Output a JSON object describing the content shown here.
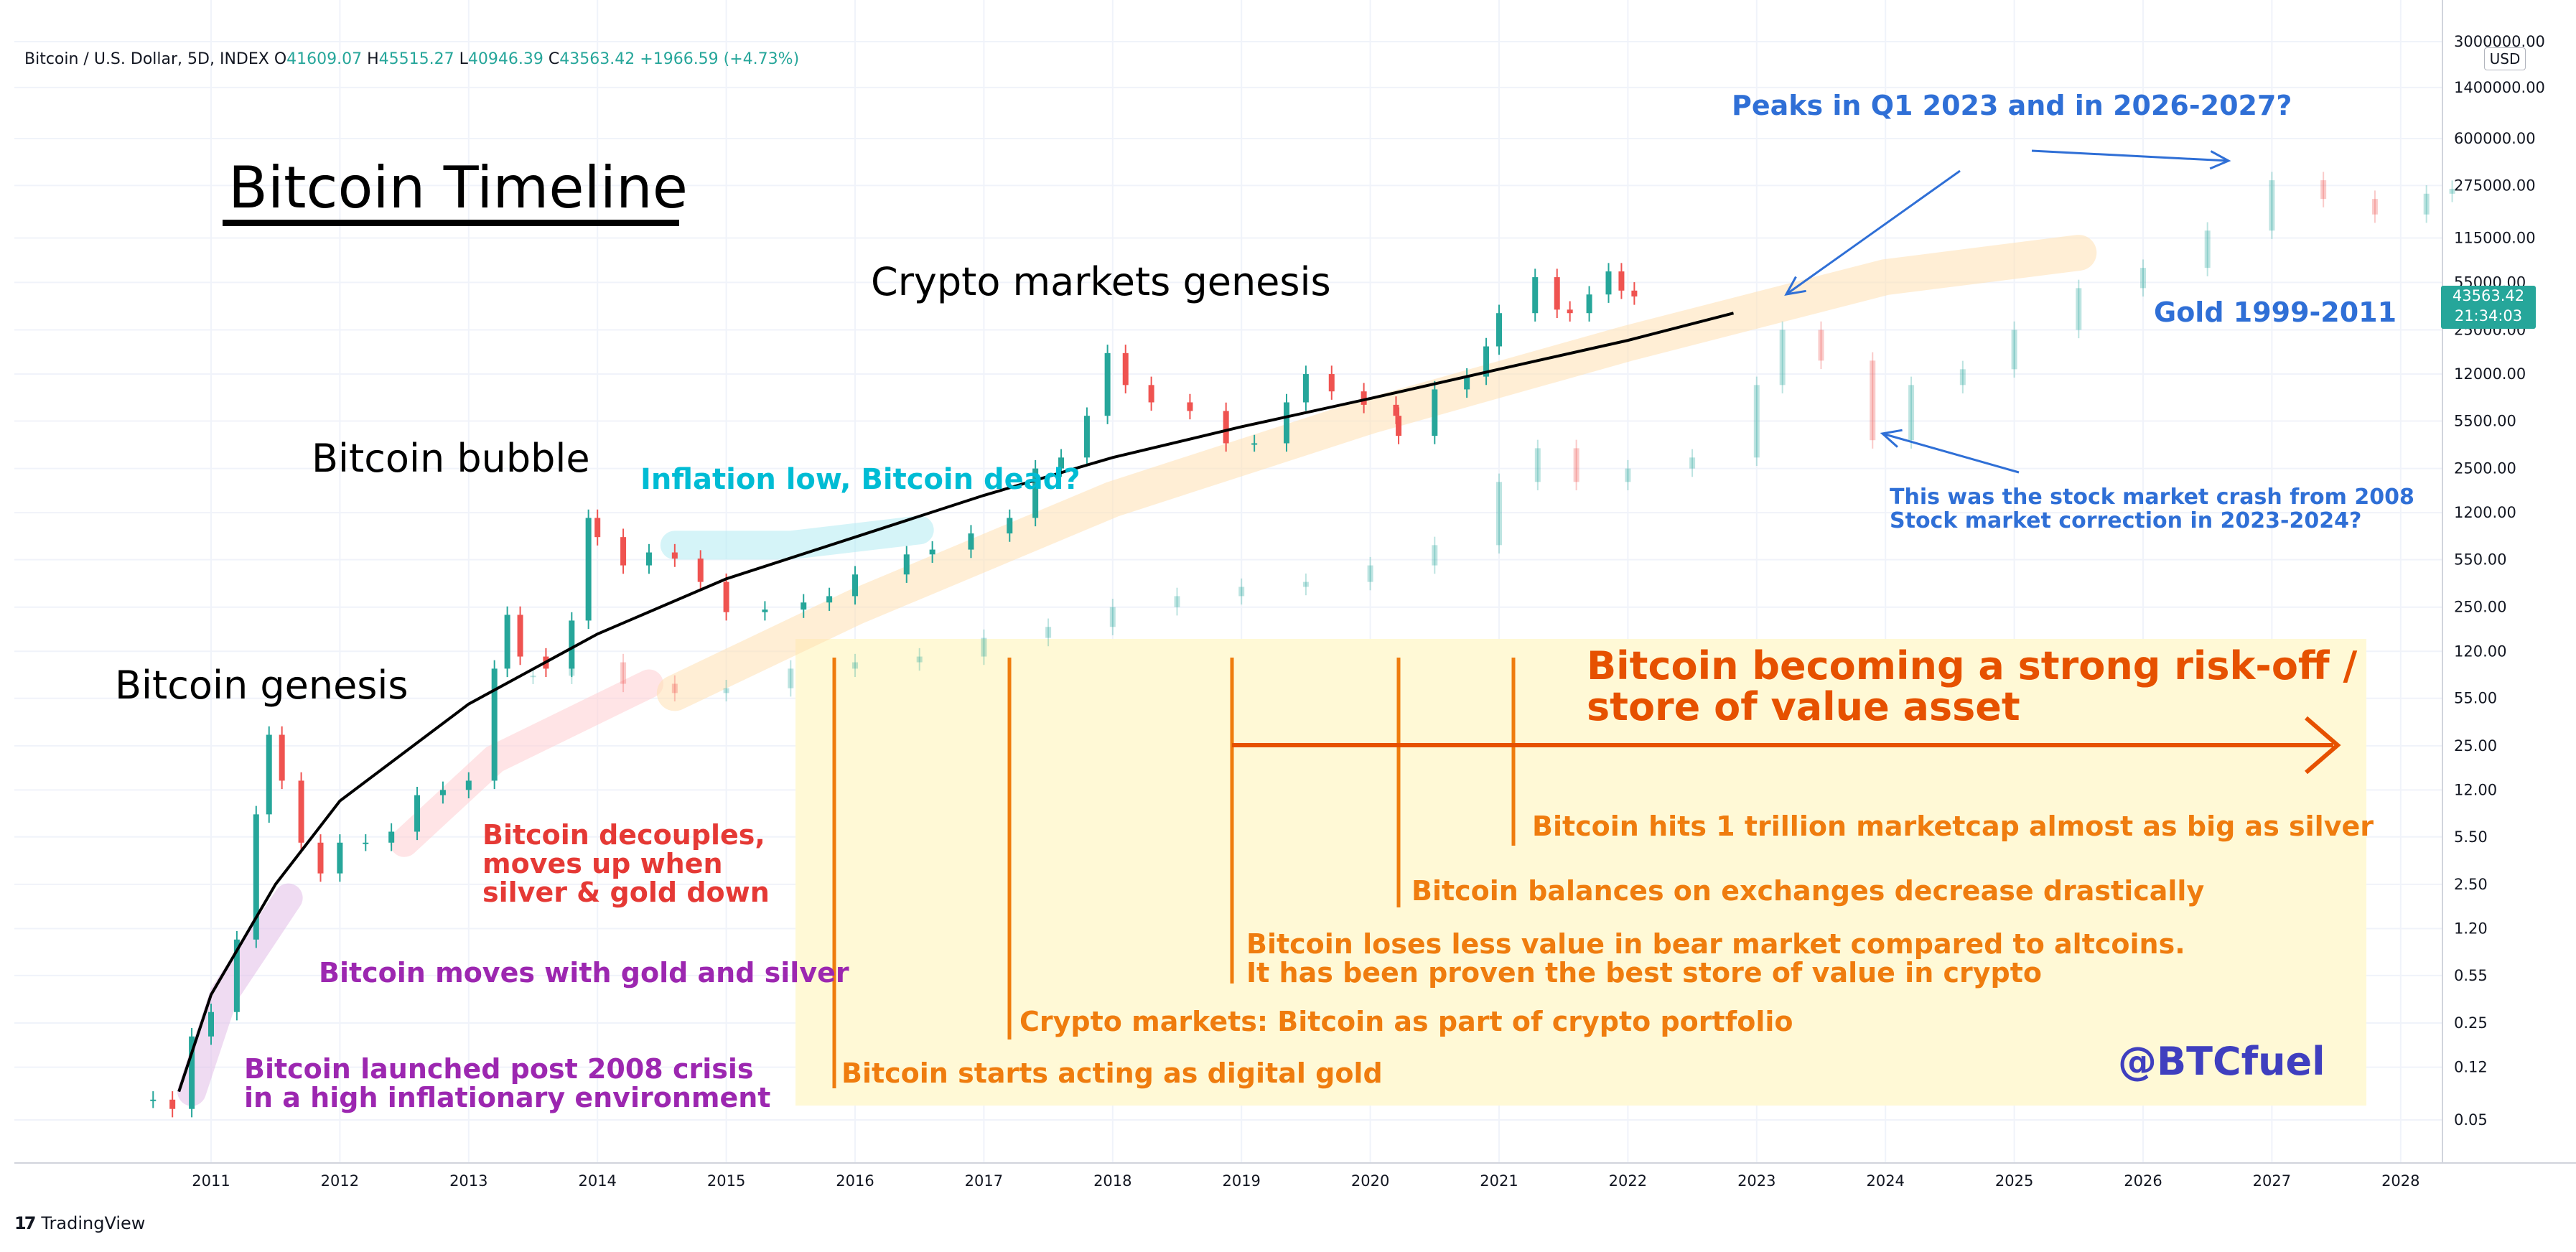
{
  "header": {
    "symbol": "Bitcoin / U.S. Dollar, 5D, INDEX",
    "open_key": "O",
    "open": "41609.07",
    "high_key": "H",
    "high": "45515.27",
    "low_key": "L",
    "low": "40946.39",
    "close_key": "C",
    "close": "43563.42",
    "change": "+1966.59 (+4.73%)"
  },
  "price_axis": {
    "currency": "USD",
    "last_price": "43563.42",
    "countdown": "21:34:03"
  },
  "colors": {
    "up": "#26a69a",
    "down": "#ef5350",
    "trend": "#000000",
    "orange": "#ef7c0e",
    "box": "#fff9d6"
  },
  "brand": {
    "logo_mark": "17",
    "logo_text": "TradingView"
  },
  "annotations": {
    "title": "Bitcoin Timeline",
    "genesis": "Bitcoin genesis",
    "bubble": "Bitcoin bubble",
    "crypto_genesis": "Crypto markets genesis",
    "inflation": "Inflation low, Bitcoin dead?",
    "peaks": "Peaks in Q1 2023 and in 2026-2027?",
    "gold": "Gold 1999-2011",
    "crash_1": "This was the stock market crash from 2008",
    "crash_2": "Stock market correction in 2023-2024?",
    "decouples_1": "Bitcoin decouples,",
    "decouples_2": "moves up when",
    "decouples_3": "silver & gold down",
    "moves_with": "Bitcoin moves with gold and silver",
    "launched_1": "Bitcoin launched post 2008 crisis",
    "launched_2": "in a high inflationary environment",
    "store_1": "Bitcoin becoming a strong risk-off /",
    "store_2": "store of value asset",
    "trillion": "Bitcoin hits 1 trillion marketcap almost as big as silver",
    "balances": "Bitcoin balances on exchanges decrease drastically",
    "loses_1": "Bitcoin loses less value in bear market compared to altcoins.",
    "loses_2": "It has been proven the best store of value in crypto",
    "portfolio": "Crypto markets: Bitcoin as part of crypto portfolio",
    "digital_gold": "Bitcoin starts acting as digital gold",
    "handle": "@BTCfuel"
  },
  "chart_data": {
    "type": "line",
    "title": "",
    "xlabel": "",
    "ylabel": "",
    "y_scale": "log",
    "ylim": [
      0.03,
      3000000
    ],
    "x_ticks": [
      "2011",
      "2012",
      "2013",
      "2014",
      "2015",
      "2016",
      "2017",
      "2018",
      "2019",
      "2020",
      "2021",
      "2022",
      "2023",
      "2024",
      "2025",
      "2026",
      "2027",
      "2028"
    ],
    "y_ticks": [
      {
        "label": "3000000.00",
        "value": 3000000
      },
      {
        "label": "1400000.00",
        "value": 1400000
      },
      {
        "label": "600000.00",
        "value": 600000
      },
      {
        "label": "275000.00",
        "value": 275000
      },
      {
        "label": "115000.00",
        "value": 115000
      },
      {
        "label": "55000.00",
        "value": 55000
      },
      {
        "label": "25000.00",
        "value": 25000
      },
      {
        "label": "12000.00",
        "value": 12000
      },
      {
        "label": "5500.00",
        "value": 5500
      },
      {
        "label": "2500.00",
        "value": 2500
      },
      {
        "label": "1200.00",
        "value": 1200
      },
      {
        "label": "550.00",
        "value": 550
      },
      {
        "label": "250.00",
        "value": 250
      },
      {
        "label": "120.00",
        "value": 120
      },
      {
        "label": "55.00",
        "value": 55
      },
      {
        "label": "25.00",
        "value": 25
      },
      {
        "label": "12.00",
        "value": 12
      },
      {
        "label": "5.50",
        "value": 5.5
      },
      {
        "label": "2.50",
        "value": 2.5
      },
      {
        "label": "1.20",
        "value": 1.2
      },
      {
        "label": "0.55",
        "value": 0.55
      },
      {
        "label": "0.25",
        "value": 0.25
      },
      {
        "label": "0.12",
        "value": 0.12
      },
      {
        "label": "0.05",
        "value": 0.05
      }
    ],
    "series": [
      {
        "name": "",
        "style": "candles",
        "points": [
          {
            "x": 2010.55,
            "y": 0.07
          },
          {
            "x": 2010.7,
            "y": 0.06
          },
          {
            "x": 2010.85,
            "y": 0.2
          },
          {
            "x": 2011.0,
            "y": 0.3
          },
          {
            "x": 2011.2,
            "y": 1.0
          },
          {
            "x": 2011.35,
            "y": 8
          },
          {
            "x": 2011.45,
            "y": 30
          },
          {
            "x": 2011.55,
            "y": 14
          },
          {
            "x": 2011.7,
            "y": 5
          },
          {
            "x": 2011.85,
            "y": 3
          },
          {
            "x": 2012.0,
            "y": 5
          },
          {
            "x": 2012.2,
            "y": 5
          },
          {
            "x": 2012.4,
            "y": 6
          },
          {
            "x": 2012.6,
            "y": 11
          },
          {
            "x": 2012.8,
            "y": 12
          },
          {
            "x": 2013.0,
            "y": 14
          },
          {
            "x": 2013.2,
            "y": 90
          },
          {
            "x": 2013.3,
            "y": 220
          },
          {
            "x": 2013.4,
            "y": 110
          },
          {
            "x": 2013.6,
            "y": 90
          },
          {
            "x": 2013.8,
            "y": 200
          },
          {
            "x": 2013.93,
            "y": 1100
          },
          {
            "x": 2014.0,
            "y": 800
          },
          {
            "x": 2014.2,
            "y": 500
          },
          {
            "x": 2014.4,
            "y": 620
          },
          {
            "x": 2014.6,
            "y": 560
          },
          {
            "x": 2014.8,
            "y": 380
          },
          {
            "x": 2015.0,
            "y": 230
          },
          {
            "x": 2015.3,
            "y": 240
          },
          {
            "x": 2015.6,
            "y": 270
          },
          {
            "x": 2015.8,
            "y": 300
          },
          {
            "x": 2016.0,
            "y": 430
          },
          {
            "x": 2016.4,
            "y": 600
          },
          {
            "x": 2016.6,
            "y": 650
          },
          {
            "x": 2016.9,
            "y": 850
          },
          {
            "x": 2017.2,
            "y": 1100
          },
          {
            "x": 2017.4,
            "y": 2500
          },
          {
            "x": 2017.6,
            "y": 3000
          },
          {
            "x": 2017.8,
            "y": 6000
          },
          {
            "x": 2017.96,
            "y": 17000
          },
          {
            "x": 2018.1,
            "y": 10000
          },
          {
            "x": 2018.3,
            "y": 7500
          },
          {
            "x": 2018.6,
            "y": 6500
          },
          {
            "x": 2018.88,
            "y": 3800
          },
          {
            "x": 2019.1,
            "y": 3800
          },
          {
            "x": 2019.35,
            "y": 7500
          },
          {
            "x": 2019.5,
            "y": 12000
          },
          {
            "x": 2019.7,
            "y": 9000
          },
          {
            "x": 2019.95,
            "y": 7200
          },
          {
            "x": 2020.2,
            "y": 6000
          },
          {
            "x": 2020.22,
            "y": 4300
          },
          {
            "x": 2020.5,
            "y": 9300
          },
          {
            "x": 2020.75,
            "y": 11500
          },
          {
            "x": 2020.9,
            "y": 19000
          },
          {
            "x": 2021.0,
            "y": 33000
          },
          {
            "x": 2021.28,
            "y": 60000
          },
          {
            "x": 2021.45,
            "y": 35000
          },
          {
            "x": 2021.55,
            "y": 33000
          },
          {
            "x": 2021.7,
            "y": 45000
          },
          {
            "x": 2021.85,
            "y": 66000
          },
          {
            "x": 2021.95,
            "y": 48000
          },
          {
            "x": 2022.05,
            "y": 43563
          }
        ]
      },
      {
        "name": "",
        "style": "faded-candles",
        "points": [
          {
            "x": 2013.5,
            "y": 80
          },
          {
            "x": 2013.8,
            "y": 100
          },
          {
            "x": 2014.2,
            "y": 70
          },
          {
            "x": 2014.6,
            "y": 60
          },
          {
            "x": 2015.0,
            "y": 65
          },
          {
            "x": 2015.5,
            "y": 90
          },
          {
            "x": 2016.0,
            "y": 100
          },
          {
            "x": 2016.5,
            "y": 110
          },
          {
            "x": 2017.0,
            "y": 150
          },
          {
            "x": 2017.5,
            "y": 180
          },
          {
            "x": 2018.0,
            "y": 250
          },
          {
            "x": 2018.5,
            "y": 300
          },
          {
            "x": 2019.0,
            "y": 350
          },
          {
            "x": 2019.5,
            "y": 380
          },
          {
            "x": 2020.0,
            "y": 500
          },
          {
            "x": 2020.5,
            "y": 700
          },
          {
            "x": 2021.0,
            "y": 2000
          },
          {
            "x": 2021.3,
            "y": 3500
          },
          {
            "x": 2021.6,
            "y": 2000
          },
          {
            "x": 2022.0,
            "y": 2500
          },
          {
            "x": 2022.5,
            "y": 3000
          },
          {
            "x": 2023.0,
            "y": 10000
          },
          {
            "x": 2023.2,
            "y": 25000
          },
          {
            "x": 2023.5,
            "y": 15000
          },
          {
            "x": 2023.9,
            "y": 4000
          },
          {
            "x": 2024.2,
            "y": 10000
          },
          {
            "x": 2024.6,
            "y": 13000
          },
          {
            "x": 2025.0,
            "y": 25000
          },
          {
            "x": 2025.5,
            "y": 50000
          },
          {
            "x": 2026.0,
            "y": 70000
          },
          {
            "x": 2026.5,
            "y": 130000
          },
          {
            "x": 2027.0,
            "y": 300000
          },
          {
            "x": 2027.4,
            "y": 220000
          },
          {
            "x": 2027.8,
            "y": 170000
          },
          {
            "x": 2028.2,
            "y": 240000
          },
          {
            "x": 2028.4,
            "y": 260000
          }
        ]
      },
      {
        "name": "",
        "style": "trend-curve",
        "points": [
          {
            "x": 2010.75,
            "y": 0.08
          },
          {
            "x": 2011.0,
            "y": 0.4
          },
          {
            "x": 2011.5,
            "y": 2.5
          },
          {
            "x": 2012.0,
            "y": 10
          },
          {
            "x": 2013.0,
            "y": 50
          },
          {
            "x": 2014.0,
            "y": 160
          },
          {
            "x": 2015.0,
            "y": 400
          },
          {
            "x": 2016.0,
            "y": 800
          },
          {
            "x": 2017.0,
            "y": 1600
          },
          {
            "x": 2018.0,
            "y": 3000
          },
          {
            "x": 2019.0,
            "y": 5000
          },
          {
            "x": 2020.0,
            "y": 8000
          },
          {
            "x": 2021.0,
            "y": 13000
          },
          {
            "x": 2022.0,
            "y": 21000
          },
          {
            "x": 2022.82,
            "y": 33000
          }
        ]
      }
    ]
  }
}
